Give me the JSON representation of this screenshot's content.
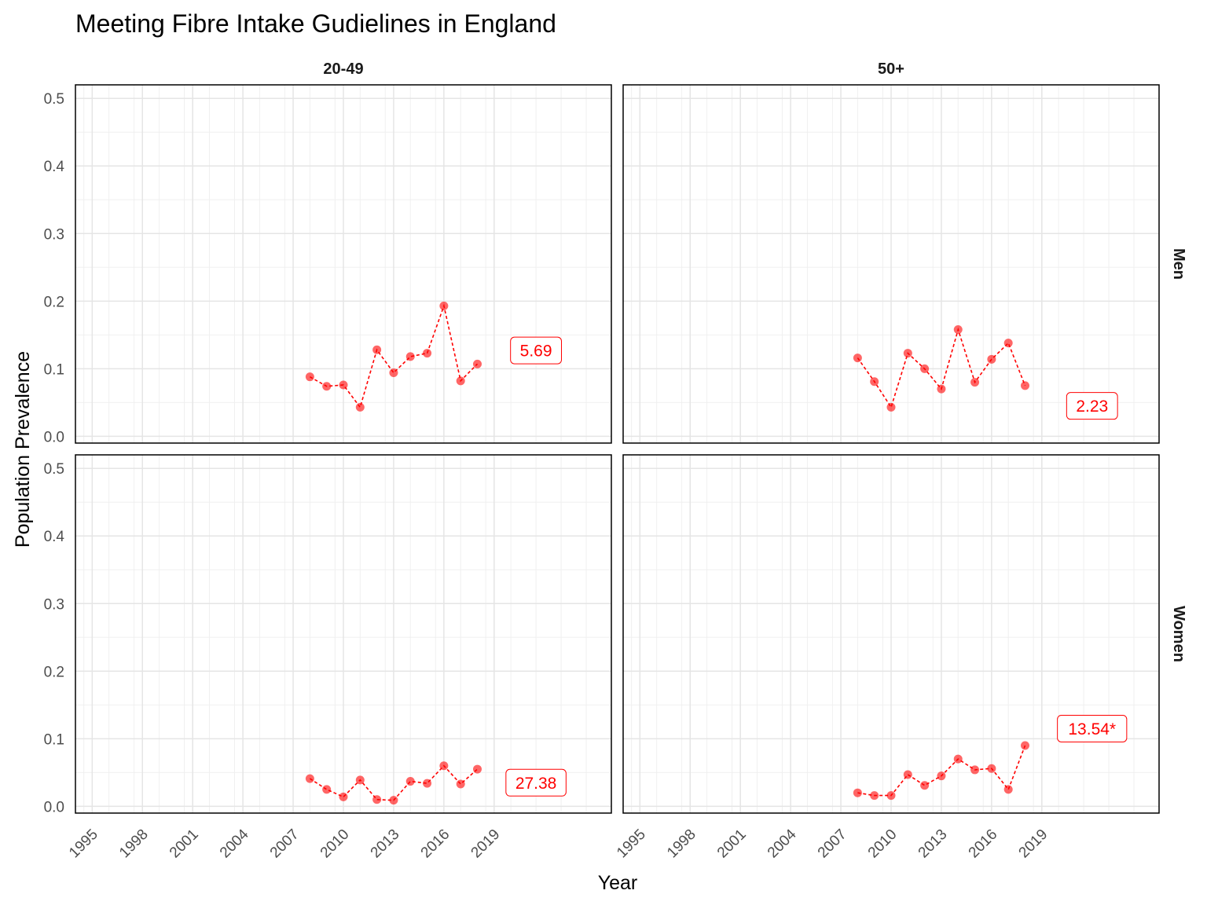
{
  "chart_data": {
    "type": "line",
    "title": "Meeting Fibre Intake Gudielines in England",
    "xlabel": "Year",
    "ylabel": "Population Prevalence",
    "xlim": [
      1994,
      2026
    ],
    "ylim": [
      -0.01,
      0.52
    ],
    "xticks": [
      1995,
      1998,
      2001,
      2004,
      2007,
      2010,
      2013,
      2016,
      2019
    ],
    "yticks": [
      0.0,
      0.1,
      0.2,
      0.3,
      0.4,
      0.5
    ],
    "ytick_labels": [
      "0.0",
      "0.1",
      "0.2",
      "0.3",
      "0.4",
      "0.5"
    ],
    "grid": true,
    "series_color": "#ff0000",
    "facet_columns": [
      "20-49",
      "50+"
    ],
    "facet_rows": [
      "Men",
      "Women"
    ],
    "panels": [
      {
        "column": "20-49",
        "row": "Men",
        "x": [
          2008,
          2009,
          2010,
          2011,
          2012,
          2013,
          2014,
          2015,
          2016,
          2017,
          2018
        ],
        "y": [
          0.088,
          0.074,
          0.076,
          0.043,
          0.128,
          0.094,
          0.118,
          0.123,
          0.193,
          0.082,
          0.107
        ],
        "annotation": "5.69",
        "annotation_pos": [
          2021.5,
          0.127
        ]
      },
      {
        "column": "50+",
        "row": "Men",
        "x": [
          2008,
          2009,
          2010,
          2011,
          2012,
          2013,
          2014,
          2015,
          2016,
          2017,
          2018
        ],
        "y": [
          0.116,
          0.081,
          0.043,
          0.123,
          0.1,
          0.07,
          0.158,
          0.08,
          0.114,
          0.138,
          0.075
        ],
        "annotation": "2.23",
        "annotation_pos": [
          2022,
          0.045
        ]
      },
      {
        "column": "20-49",
        "row": "Women",
        "x": [
          2008,
          2009,
          2010,
          2011,
          2012,
          2013,
          2014,
          2015,
          2016,
          2017,
          2018
        ],
        "y": [
          0.041,
          0.025,
          0.014,
          0.039,
          0.01,
          0.009,
          0.037,
          0.034,
          0.06,
          0.033,
          0.055
        ],
        "annotation": "27.38",
        "annotation_pos": [
          2021.5,
          0.035
        ]
      },
      {
        "column": "50+",
        "row": "Women",
        "x": [
          2008,
          2009,
          2010,
          2011,
          2012,
          2013,
          2014,
          2015,
          2016,
          2017,
          2018
        ],
        "y": [
          0.02,
          0.016,
          0.016,
          0.047,
          0.031,
          0.045,
          0.07,
          0.054,
          0.056,
          0.025,
          0.09
        ],
        "annotation": "13.54*",
        "annotation_pos": [
          2022,
          0.115
        ]
      }
    ]
  }
}
